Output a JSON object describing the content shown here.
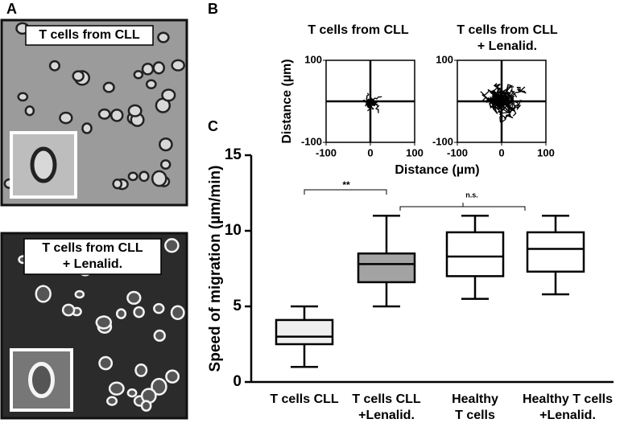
{
  "panels": {
    "a": {
      "letter": "A",
      "images": [
        {
          "label": [
            "T cells from CLL"
          ]
        },
        {
          "label": [
            "T cells from CLL",
            "+ Lenalid."
          ]
        }
      ]
    },
    "b": {
      "letter": "B"
    },
    "c": {
      "letter": "C"
    }
  },
  "chart_data": [
    {
      "type": "box",
      "ylabel": "Speed of migration (µm/min)",
      "categories": [
        [
          "T cells CLL"
        ],
        [
          "T cells CLL",
          "+Lenalid."
        ],
        [
          "Healthy",
          "T cells"
        ],
        [
          "Healthy T cells",
          "+Lenalid."
        ]
      ],
      "boxes": [
        {
          "min": 1,
          "q1": 2.5,
          "median": 3,
          "q3": 4.1,
          "max": 5
        },
        {
          "min": 5,
          "q1": 6.6,
          "median": 7.8,
          "q3": 8.5,
          "max": 11
        },
        {
          "min": 5.5,
          "q1": 7,
          "median": 8.3,
          "q3": 9.9,
          "max": 11
        },
        {
          "min": 5.8,
          "q1": 7.3,
          "median": 8.8,
          "q3": 9.9,
          "max": 11
        }
      ],
      "colors": [
        "#efefef",
        "#a3a3a3",
        "#ffffff",
        "#ffffff"
      ],
      "ylim": [
        0,
        15
      ],
      "yticks": [
        0,
        5,
        10,
        15
      ],
      "annotations": [
        "**",
        "n.s."
      ]
    },
    {
      "type": "tracks",
      "title": [
        "T cells from CLL"
      ],
      "ylabel": "Distance (µm)",
      "xlabel": "Distance (µm)",
      "xlim": [
        -100,
        100
      ],
      "ylim": [
        -100,
        100
      ],
      "xticks": [
        -100,
        0,
        100
      ],
      "yticks": [
        -100,
        100
      ]
    },
    {
      "type": "tracks",
      "title": [
        "T cells from CLL",
        "+ Lenalid."
      ],
      "xlim": [
        -100,
        100
      ],
      "ylim": [
        -100,
        100
      ],
      "xticks": [
        -100,
        0,
        100
      ],
      "yticks": [
        -100,
        100
      ]
    }
  ]
}
